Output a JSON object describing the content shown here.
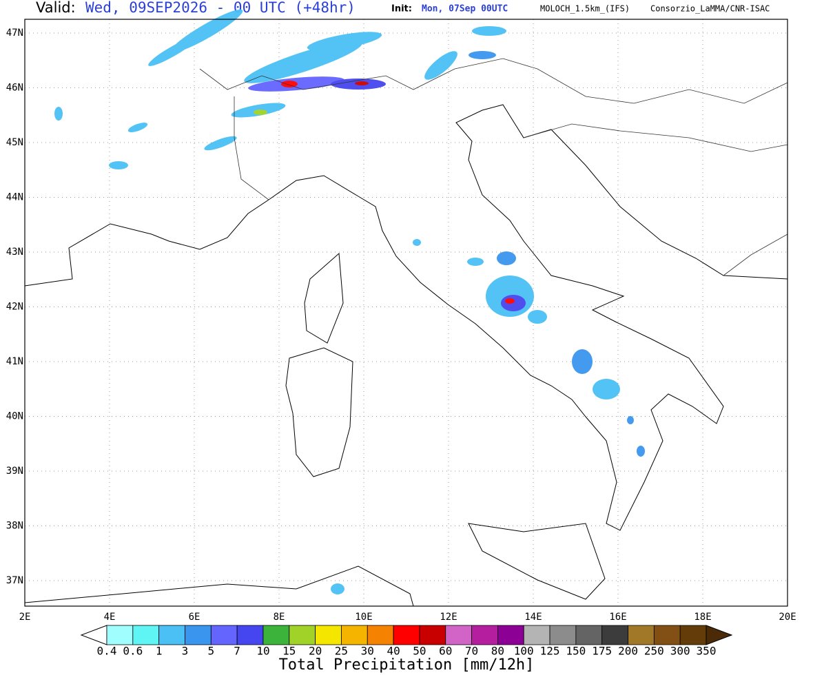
{
  "header": {
    "valid_label": "Valid:",
    "valid_text": "Wed, 09SEP2026 - 00 UTC (+48hr)",
    "init_label": "Init:",
    "init_text": "Mon, 07Sep 00UTC",
    "model": "MOLOCH_1.5km_(IFS)",
    "credit": "Consorzio_LaMMA/CNR-ISAC"
  },
  "map": {
    "lat_labels": [
      "47N",
      "46N",
      "45N",
      "44N",
      "43N",
      "42N",
      "41N",
      "40N",
      "39N",
      "38N",
      "37N"
    ],
    "lon_labels": [
      "2E",
      "4E",
      "6E",
      "8E",
      "10E",
      "12E",
      "14E",
      "16E",
      "18E",
      "20E"
    ]
  },
  "colorbar": {
    "labels": [
      "0.4",
      "0.6",
      "1",
      "3",
      "5",
      "7",
      "10",
      "15",
      "20",
      "25",
      "30",
      "40",
      "50",
      "60",
      "70",
      "80",
      "100",
      "125",
      "150",
      "175",
      "200",
      "250",
      "300",
      "350"
    ],
    "colors": [
      "#a0fffe",
      "#5ff5f5",
      "#4ac0f5",
      "#3a95ef",
      "#6464ff",
      "#4646f0",
      "#3cb43c",
      "#a0d228",
      "#f5e600",
      "#f5b400",
      "#f58200",
      "#ff0000",
      "#c80000",
      "#d264c8",
      "#b41e9f",
      "#8c0096",
      "#b4b4b4",
      "#8c8c8c",
      "#646464",
      "#3c3c3c",
      "#a07828",
      "#825014",
      "#643c0a"
    ],
    "under_color": "#ffffff",
    "over_color": "#4b2a08",
    "title": "Total Precipitation [mm/12h]"
  }
}
